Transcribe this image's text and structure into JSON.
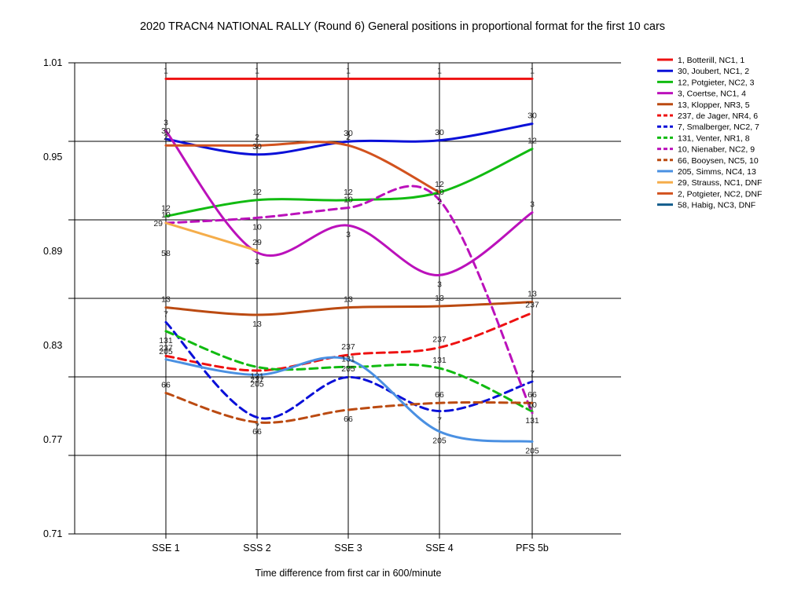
{
  "chart_data": {
    "type": "line",
    "title": "2020 TRACN4 NATIONAL RALLY (Round 6)  General positions in proportional format for the first 10 cars",
    "xlabel": "Time difference from first car in 600/minute",
    "ylabel": "",
    "categories": [
      "SSE 1",
      "SSS 2",
      "SSE 3",
      "SSE 4",
      "PFS 5b"
    ],
    "ylim": [
      0.71,
      1.01
    ],
    "y_ticks": [
      "0.71",
      "0.77",
      "0.83",
      "0.89",
      "0.95",
      "1.01"
    ],
    "grid": true,
    "legend_position": "right",
    "series": [
      {
        "name": "1, Botterill, NC1, 1",
        "label": "1",
        "color": "#ee1111",
        "dash": false,
        "values": [
          0.9998,
          0.9998,
          0.9998,
          0.9998,
          0.9998
        ],
        "labels_pos": [
          "above",
          "above",
          "above",
          "above",
          "above"
        ]
      },
      {
        "name": "30, Joubert, NC1, 2",
        "label": "30",
        "color": "#0a10d8",
        "dash": false,
        "values": [
          0.9615,
          0.9516,
          0.9599,
          0.9606,
          0.9712
        ],
        "labels_pos": [
          "above",
          "above",
          "above",
          "above",
          "above"
        ]
      },
      {
        "name": "12, Potgieter, NC2, 3",
        "label": "12",
        "color": "#11bb11",
        "dash": false,
        "values": [
          0.9123,
          0.9226,
          0.9226,
          0.9275,
          0.9552
        ],
        "labels_pos": [
          "above",
          "above",
          "above",
          "above",
          "above"
        ]
      },
      {
        "name": "3, Coertse, NC1, 4",
        "label": "3",
        "color": "#bb11bb",
        "dash": false,
        "values": [
          0.9667,
          0.8893,
          0.9064,
          0.8748,
          0.9147
        ],
        "labels_pos": [
          "above",
          "below",
          "below",
          "below",
          "above"
        ]
      },
      {
        "name": "13, Klopper, NR3, 5",
        "label": "13",
        "color": "#bb4a11",
        "dash": false,
        "values": [
          0.8542,
          0.8495,
          0.8542,
          0.855,
          0.8577
        ],
        "labels_pos": [
          "above",
          "below",
          "above",
          "above",
          "above"
        ]
      },
      {
        "name": "237, de Jager, NR4, 6",
        "label": "237",
        "color": "#ee1111",
        "dash": true,
        "values": [
          0.8233,
          0.814,
          0.824,
          0.8287,
          0.8507
        ],
        "labels_pos": [
          "above",
          "below",
          "above",
          "above",
          "above"
        ]
      },
      {
        "name": "7, Smalberger, NC2, 7",
        "label": "7",
        "color": "#0a10d8",
        "dash": true,
        "values": [
          0.8448,
          0.7842,
          0.8098,
          0.7882,
          0.807
        ],
        "labels_pos": [
          "above",
          "below",
          "above",
          "below",
          "above"
        ]
      },
      {
        "name": "131, Venter, NR1, 8",
        "label": "131",
        "color": "#11bb11",
        "dash": true,
        "values": [
          0.8391,
          0.8163,
          0.8163,
          0.8155,
          0.788
        ],
        "labels_pos": [
          "below",
          "below",
          "above",
          "above",
          "below"
        ]
      },
      {
        "name": "10, Nienaber, NC2, 9",
        "label": "10",
        "color": "#bb11bb",
        "dash": true,
        "values": [
          0.908,
          0.9113,
          0.9177,
          0.9226,
          0.787
        ],
        "labels_pos": [
          "above",
          "below",
          "above",
          "above",
          "above"
        ]
      },
      {
        "name": "66, Booysen, NC5, 10",
        "label": "66",
        "color": "#bb4a11",
        "dash": true,
        "values": [
          0.7997,
          0.7811,
          0.789,
          0.7934,
          0.7934
        ],
        "labels_pos": [
          "above",
          "below",
          "below",
          "above",
          "above"
        ]
      },
      {
        "name": "205, Simms, NC4, 13",
        "label": "205",
        "color": "#4a90e2",
        "dash": false,
        "values": [
          0.8211,
          0.8113,
          0.8211,
          0.7752,
          0.7688
        ],
        "labels_pos": [
          "above",
          "below",
          "below",
          "below",
          "below"
        ]
      },
      {
        "name": "29, Strauss, NC1, DNF",
        "label": "29",
        "color": "#f5ad4a",
        "dash": false,
        "values": [
          0.908,
          0.8904,
          null,
          null,
          null
        ],
        "labels_pos": [
          "left",
          "above",
          null,
          null,
          null
        ]
      },
      {
        "name": "2, Potgieter, NC2, DNF",
        "label": "2",
        "color": "#d2521e",
        "dash": false,
        "values": [
          0.9574,
          0.9574,
          0.9574,
          0.9275,
          null
        ],
        "labels_pos": [
          "above",
          "above",
          "above",
          "below",
          null
        ]
      },
      {
        "name": "58, Habig, NC3, DNF",
        "label": "58",
        "color": "#115c8c",
        "dash": false,
        "values": [
          null,
          null,
          null,
          null,
          null
        ],
        "labels_pos": [
          null,
          null,
          null,
          null,
          null
        ],
        "extra_label": {
          "text": "58",
          "x_index": 0,
          "y": 0.8891
        }
      }
    ]
  }
}
